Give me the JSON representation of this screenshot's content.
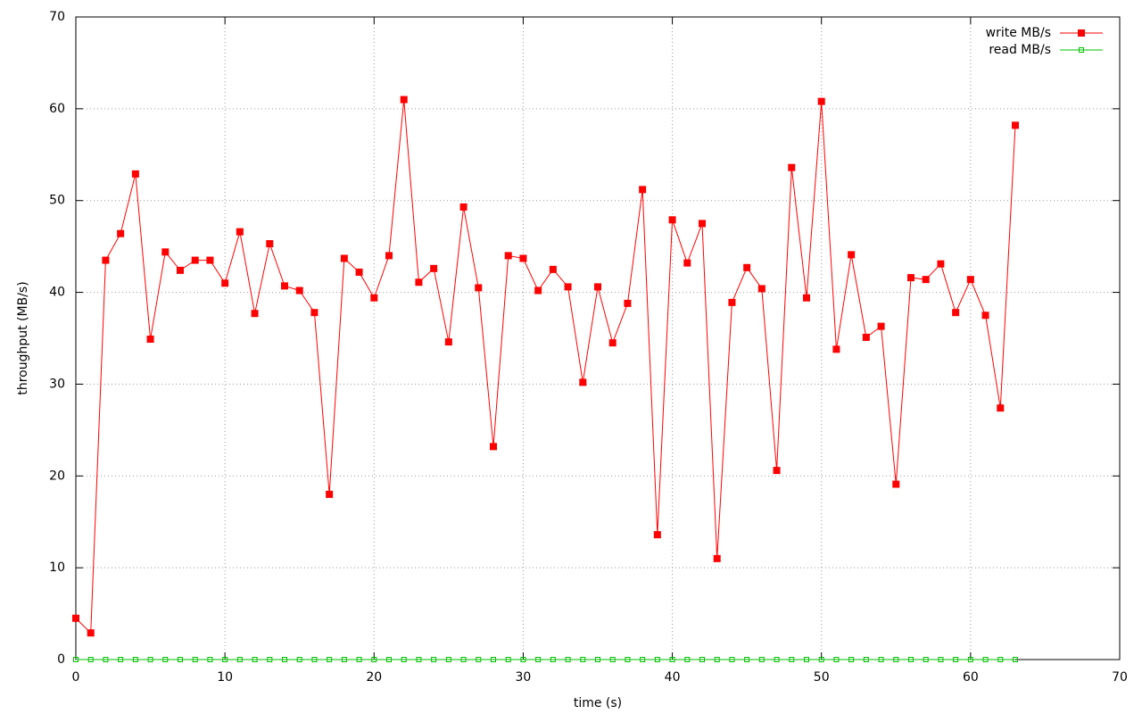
{
  "chart_data": {
    "type": "line",
    "xlabel": "time (s)",
    "ylabel": "throughput (MB/s)",
    "x": [
      0,
      1,
      2,
      3,
      4,
      5,
      6,
      7,
      8,
      9,
      10,
      11,
      12,
      13,
      14,
      15,
      16,
      17,
      18,
      19,
      20,
      21,
      22,
      23,
      24,
      25,
      26,
      27,
      28,
      29,
      30,
      31,
      32,
      33,
      34,
      35,
      36,
      37,
      38,
      39,
      40,
      41,
      42,
      43,
      44,
      45,
      46,
      47,
      48,
      49,
      50,
      51,
      52,
      53,
      54,
      55,
      56,
      57,
      58,
      59,
      60,
      61,
      62,
      63
    ],
    "series": [
      {
        "name": "write MB/s",
        "color": "#ff0000",
        "marker": "filled-square",
        "values": [
          4.5,
          2.9,
          43.5,
          46.4,
          52.9,
          34.9,
          44.4,
          42.4,
          43.5,
          43.5,
          41.0,
          46.6,
          37.7,
          45.3,
          40.7,
          40.2,
          37.8,
          18.0,
          43.7,
          42.2,
          39.4,
          44.0,
          61.0,
          41.1,
          42.6,
          34.6,
          49.3,
          40.5,
          23.2,
          44.0,
          43.7,
          40.2,
          42.5,
          40.6,
          30.2,
          40.6,
          34.5,
          38.8,
          51.2,
          13.6,
          47.9,
          43.2,
          47.5,
          11.0,
          38.9,
          42.7,
          40.4,
          20.6,
          53.6,
          39.4,
          60.8,
          33.8,
          44.1,
          35.1,
          36.3,
          19.1,
          41.6,
          41.4,
          43.1,
          37.8,
          41.4,
          37.5,
          27.4,
          58.2
        ]
      },
      {
        "name": "read MB/s",
        "color": "#00c000",
        "marker": "open-square",
        "values": [
          0,
          0,
          0,
          0,
          0,
          0,
          0,
          0,
          0,
          0,
          0,
          0,
          0,
          0,
          0,
          0,
          0,
          0,
          0,
          0,
          0,
          0,
          0,
          0,
          0,
          0,
          0,
          0,
          0,
          0,
          0,
          0,
          0,
          0,
          0,
          0,
          0,
          0,
          0,
          0,
          0,
          0,
          0,
          0,
          0,
          0,
          0,
          0,
          0,
          0,
          0,
          0,
          0,
          0,
          0,
          0,
          0,
          0,
          0,
          0,
          0,
          0,
          0,
          0
        ]
      }
    ],
    "xlim": [
      0,
      70
    ],
    "ylim": [
      0,
      70
    ],
    "xticks": [
      0,
      10,
      20,
      30,
      40,
      50,
      60,
      70
    ],
    "yticks": [
      0,
      10,
      20,
      30,
      40,
      50,
      60,
      70
    ],
    "grid": true,
    "legend": "top-right"
  }
}
